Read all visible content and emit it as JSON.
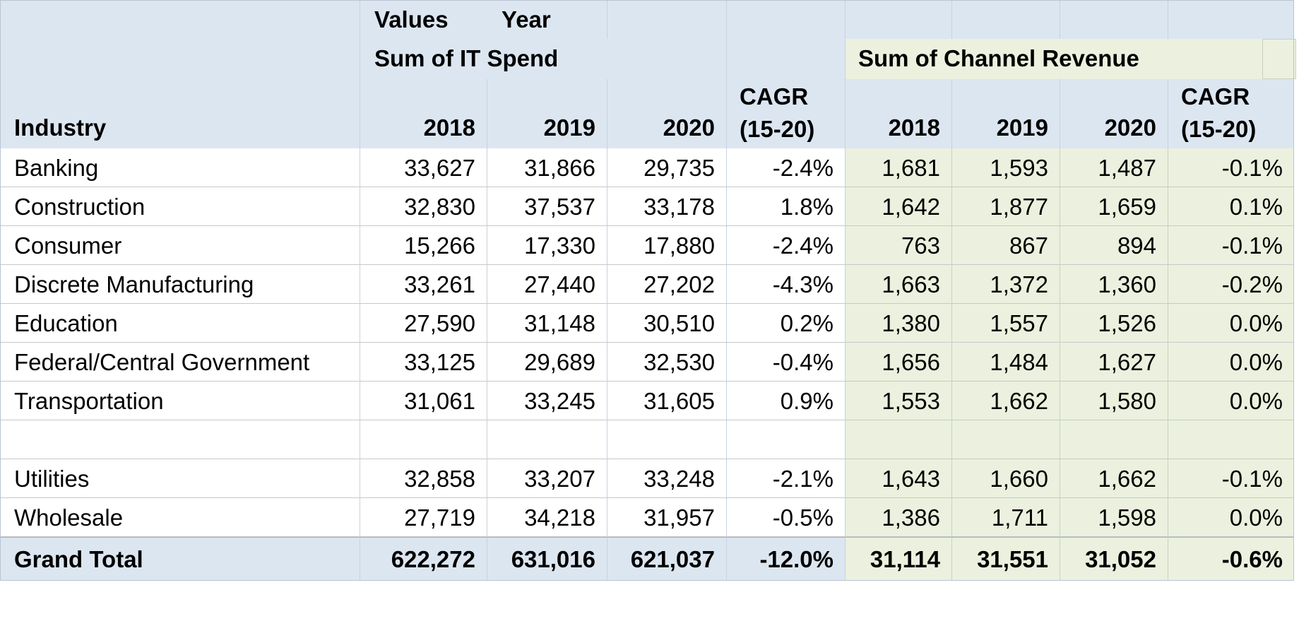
{
  "header": {
    "values_label": "Values",
    "year_label": "Year",
    "it_spend_label": "Sum of IT Spend",
    "channel_revenue_label": "Sum of Channel Revenue",
    "industry_label": "Industry",
    "years": [
      "2018",
      "2019",
      "2020"
    ],
    "cagr_line1": "CAGR",
    "cagr_line2": "(15-20)"
  },
  "rows": [
    {
      "industry": "Banking",
      "it": [
        "33,627",
        "31,866",
        "29,735"
      ],
      "it_cagr": "-2.4%",
      "ch": [
        "1,681",
        "1,593",
        "1,487"
      ],
      "ch_cagr": "-0.1%"
    },
    {
      "industry": "Construction",
      "it": [
        "32,830",
        "37,537",
        "33,178"
      ],
      "it_cagr": "1.8%",
      "ch": [
        "1,642",
        "1,877",
        "1,659"
      ],
      "ch_cagr": "0.1%"
    },
    {
      "industry": "Consumer",
      "it": [
        "15,266",
        "17,330",
        "17,880"
      ],
      "it_cagr": "-2.4%",
      "ch": [
        "763",
        "867",
        "894"
      ],
      "ch_cagr": "-0.1%"
    },
    {
      "industry": "Discrete Manufacturing",
      "it": [
        "33,261",
        "27,440",
        "27,202"
      ],
      "it_cagr": "-4.3%",
      "ch": [
        "1,663",
        "1,372",
        "1,360"
      ],
      "ch_cagr": "-0.2%"
    },
    {
      "industry": "Education",
      "it": [
        "27,590",
        "31,148",
        "30,510"
      ],
      "it_cagr": "0.2%",
      "ch": [
        "1,380",
        "1,557",
        "1,526"
      ],
      "ch_cagr": "0.0%"
    },
    {
      "industry": "Federal/Central Government",
      "it": [
        "33,125",
        "29,689",
        "32,530"
      ],
      "it_cagr": "-0.4%",
      "ch": [
        "1,656",
        "1,484",
        "1,627"
      ],
      "ch_cagr": "0.0%"
    },
    {
      "industry": "Transportation",
      "it": [
        "31,061",
        "33,245",
        "31,605"
      ],
      "it_cagr": "0.9%",
      "ch": [
        "1,553",
        "1,662",
        "1,580"
      ],
      "ch_cagr": "0.0%"
    },
    {
      "industry": "",
      "it": [
        "",
        "",
        ""
      ],
      "it_cagr": "",
      "ch": [
        "",
        "",
        ""
      ],
      "ch_cagr": ""
    },
    {
      "industry": "Utilities",
      "it": [
        "32,858",
        "33,207",
        "33,248"
      ],
      "it_cagr": "-2.1%",
      "ch": [
        "1,643",
        "1,660",
        "1,662"
      ],
      "ch_cagr": "-0.1%"
    },
    {
      "industry": "Wholesale",
      "it": [
        "27,719",
        "34,218",
        "31,957"
      ],
      "it_cagr": "-0.5%",
      "ch": [
        "1,386",
        "1,711",
        "1,598"
      ],
      "ch_cagr": "0.0%"
    }
  ],
  "grand_total": {
    "industry": "Grand Total",
    "it": [
      "622,272",
      "631,016",
      "621,037"
    ],
    "it_cagr": "-12.0%",
    "ch": [
      "31,114",
      "31,551",
      "31,052"
    ],
    "ch_cagr": "-0.6%"
  },
  "colors": {
    "header_blue": "#dce6f1",
    "channel_green": "#ebf1de"
  }
}
